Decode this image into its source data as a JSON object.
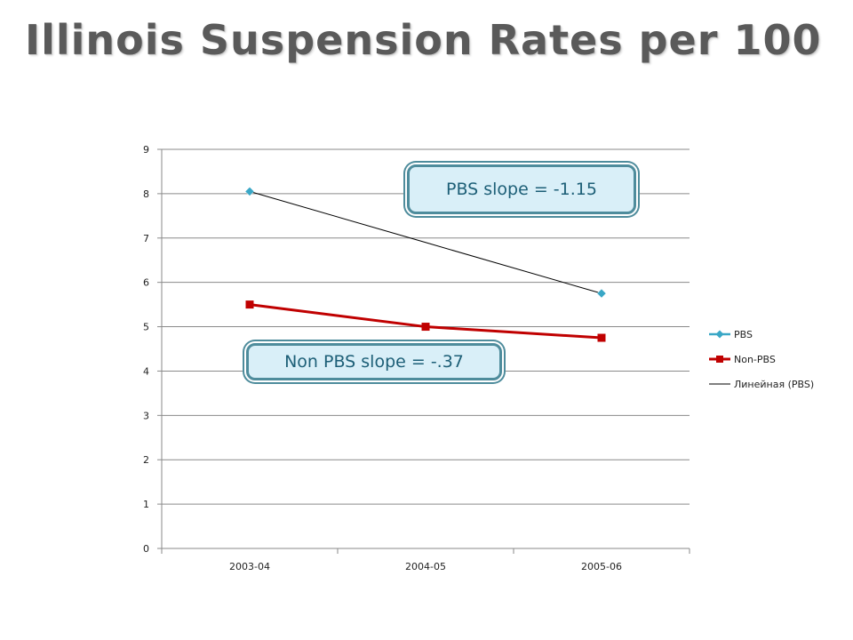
{
  "page": {
    "title": "Illinois Suspension Rates per 100"
  },
  "annotations": {
    "pbs_slope": "PBS slope = -1.15",
    "nonpbs_slope": "Non PBS slope = -.37"
  },
  "chart_data": {
    "type": "line",
    "categories": [
      "2003-04",
      "2004-05",
      "2005-06"
    ],
    "series": [
      {
        "name": "PBS",
        "values": [
          8.05,
          null,
          5.75
        ],
        "color": "#3aa7c6",
        "marker": "diamond"
      },
      {
        "name": "Non-PBS",
        "values": [
          5.5,
          5.0,
          4.75
        ],
        "color": "#c00000",
        "marker": "square"
      }
    ],
    "trendline": {
      "name": "Линейная (PBS)",
      "values": [
        8.05,
        6.9,
        5.75
      ],
      "color": "#000000"
    },
    "yticks": [
      "0",
      "1",
      "2",
      "3",
      "4",
      "5",
      "6",
      "7",
      "8",
      "9"
    ],
    "ylim": [
      0,
      9
    ],
    "grid": true,
    "legend_position": "right"
  }
}
